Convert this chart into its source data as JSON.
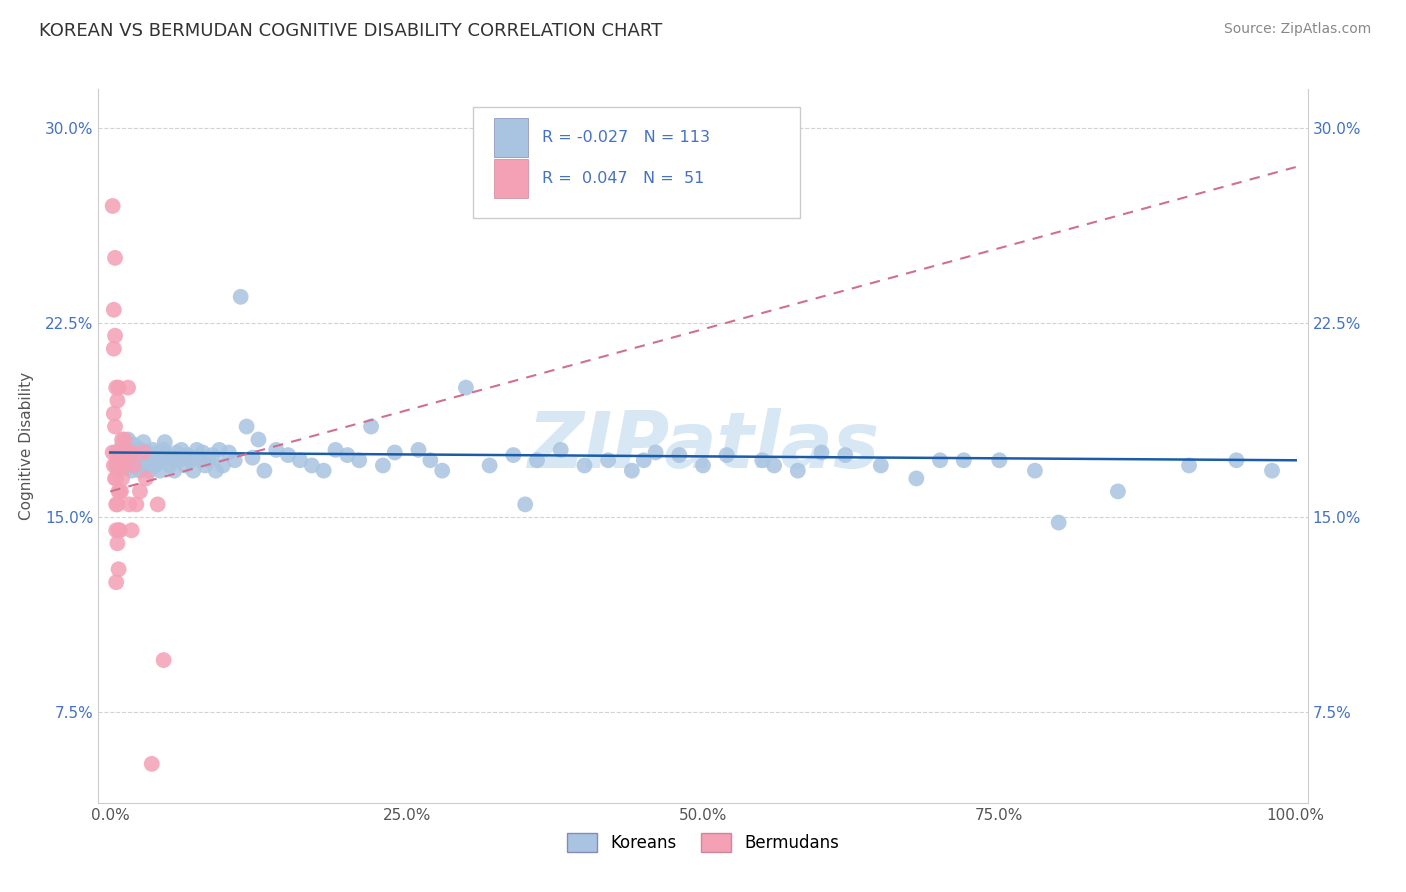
{
  "title": "KOREAN VS BERMUDAN COGNITIVE DISABILITY CORRELATION CHART",
  "source": "Source: ZipAtlas.com",
  "ylabel": "Cognitive Disability",
  "watermark": "ZIPatlas",
  "legend_korean": "Koreans",
  "legend_bermudan": "Bermudans",
  "r_korean": -0.027,
  "n_korean": 113,
  "r_bermudan": 0.047,
  "n_bermudan": 51,
  "xlim": [
    -0.01,
    1.01
  ],
  "ylim": [
    0.04,
    0.315
  ],
  "yticks": [
    0.075,
    0.15,
    0.225,
    0.3
  ],
  "ytick_labels": [
    "7.5%",
    "15.0%",
    "22.5%",
    "30.0%"
  ],
  "xticks": [
    0.0,
    0.25,
    0.5,
    0.75,
    1.0
  ],
  "xtick_labels": [
    "0.0%",
    "25.0%",
    "50.0%",
    "75.0%",
    "100.0%"
  ],
  "color_korean": "#a8c4e0",
  "color_bermudan": "#f4a0b5",
  "trendline_korean_color": "#1a5ca8",
  "trendline_bermudan_color": "#d07090",
  "background": "#ffffff",
  "grid_color": "#c8c8c8",
  "korean_x": [
    0.005,
    0.006,
    0.007,
    0.008,
    0.009,
    0.01,
    0.01,
    0.011,
    0.012,
    0.013,
    0.014,
    0.015,
    0.015,
    0.016,
    0.017,
    0.018,
    0.019,
    0.02,
    0.02,
    0.021,
    0.022,
    0.023,
    0.024,
    0.025,
    0.026,
    0.027,
    0.028,
    0.029,
    0.03,
    0.031,
    0.032,
    0.033,
    0.035,
    0.036,
    0.037,
    0.038,
    0.04,
    0.041,
    0.042,
    0.044,
    0.045,
    0.046,
    0.048,
    0.05,
    0.052,
    0.054,
    0.056,
    0.058,
    0.06,
    0.063,
    0.065,
    0.068,
    0.07,
    0.073,
    0.075,
    0.078,
    0.08,
    0.083,
    0.086,
    0.089,
    0.092,
    0.095,
    0.1,
    0.105,
    0.11,
    0.115,
    0.12,
    0.125,
    0.13,
    0.14,
    0.15,
    0.16,
    0.17,
    0.18,
    0.19,
    0.2,
    0.21,
    0.22,
    0.23,
    0.24,
    0.26,
    0.27,
    0.28,
    0.3,
    0.32,
    0.34,
    0.36,
    0.38,
    0.4,
    0.42,
    0.44,
    0.46,
    0.5,
    0.52,
    0.55,
    0.58,
    0.62,
    0.65,
    0.7,
    0.75,
    0.8,
    0.85,
    0.91,
    0.95,
    0.98,
    0.35,
    0.45,
    0.48,
    0.56,
    0.6,
    0.68,
    0.72,
    0.78
  ],
  "korean_y": [
    0.17,
    0.172,
    0.168,
    0.175,
    0.174,
    0.176,
    0.178,
    0.171,
    0.173,
    0.177,
    0.169,
    0.175,
    0.18,
    0.172,
    0.174,
    0.168,
    0.176,
    0.171,
    0.178,
    0.173,
    0.175,
    0.17,
    0.172,
    0.168,
    0.176,
    0.174,
    0.179,
    0.172,
    0.17,
    0.173,
    0.175,
    0.168,
    0.172,
    0.176,
    0.174,
    0.17,
    0.173,
    0.175,
    0.168,
    0.172,
    0.176,
    0.179,
    0.174,
    0.17,
    0.173,
    0.168,
    0.175,
    0.172,
    0.176,
    0.17,
    0.174,
    0.172,
    0.168,
    0.176,
    0.173,
    0.175,
    0.17,
    0.172,
    0.174,
    0.168,
    0.176,
    0.17,
    0.175,
    0.172,
    0.235,
    0.185,
    0.173,
    0.18,
    0.168,
    0.176,
    0.174,
    0.172,
    0.17,
    0.168,
    0.176,
    0.174,
    0.172,
    0.185,
    0.17,
    0.175,
    0.176,
    0.172,
    0.168,
    0.2,
    0.17,
    0.174,
    0.172,
    0.176,
    0.17,
    0.172,
    0.168,
    0.175,
    0.17,
    0.174,
    0.172,
    0.168,
    0.174,
    0.17,
    0.172,
    0.172,
    0.148,
    0.16,
    0.17,
    0.172,
    0.168,
    0.155,
    0.172,
    0.174,
    0.17,
    0.175,
    0.165,
    0.172,
    0.168
  ],
  "bermudan_x": [
    0.002,
    0.002,
    0.003,
    0.003,
    0.003,
    0.003,
    0.004,
    0.004,
    0.004,
    0.004,
    0.005,
    0.005,
    0.005,
    0.005,
    0.005,
    0.005,
    0.005,
    0.006,
    0.006,
    0.006,
    0.006,
    0.007,
    0.007,
    0.007,
    0.007,
    0.007,
    0.008,
    0.008,
    0.008,
    0.009,
    0.009,
    0.01,
    0.01,
    0.01,
    0.011,
    0.012,
    0.012,
    0.013,
    0.015,
    0.015,
    0.016,
    0.018,
    0.018,
    0.02,
    0.022,
    0.025,
    0.028,
    0.03,
    0.035,
    0.04,
    0.045
  ],
  "bermudan_y": [
    0.27,
    0.175,
    0.23,
    0.19,
    0.215,
    0.17,
    0.25,
    0.22,
    0.185,
    0.165,
    0.175,
    0.155,
    0.145,
    0.165,
    0.2,
    0.175,
    0.125,
    0.195,
    0.17,
    0.155,
    0.14,
    0.175,
    0.2,
    0.16,
    0.145,
    0.13,
    0.175,
    0.16,
    0.145,
    0.175,
    0.16,
    0.18,
    0.17,
    0.165,
    0.175,
    0.18,
    0.17,
    0.175,
    0.175,
    0.2,
    0.155,
    0.175,
    0.145,
    0.17,
    0.155,
    0.16,
    0.175,
    0.165,
    0.055,
    0.155,
    0.095
  ],
  "trend_korean_y0": 0.175,
  "trend_korean_y1": 0.172,
  "trend_bermudan_y0": 0.16,
  "trend_bermudan_y1": 0.285
}
